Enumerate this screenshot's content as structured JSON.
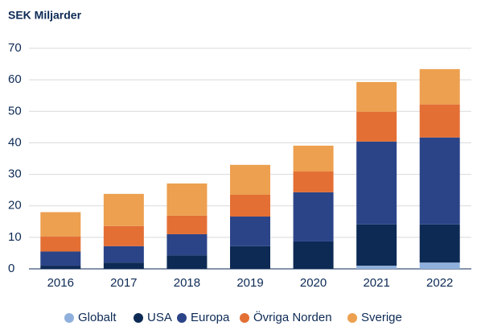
{
  "chart_data": {
    "type": "stacked_bar",
    "title": "SEK Miljarder",
    "categories": [
      "2016",
      "2017",
      "2018",
      "2019",
      "2020",
      "2021",
      "2022"
    ],
    "series": [
      {
        "name": "Globalt",
        "color": "#8fb0dc",
        "values": [
          0,
          0,
          0,
          0,
          0,
          1,
          2
        ]
      },
      {
        "name": "USA",
        "color": "#0d2a55",
        "values": [
          1,
          2,
          4.3,
          7.2,
          8.7,
          13.1,
          12.1
        ]
      },
      {
        "name": "Europa",
        "color": "#2b4488",
        "values": [
          4.5,
          5.2,
          6.7,
          9.4,
          15.6,
          26.3,
          27.6
        ]
      },
      {
        "name": "Övriga Norden",
        "color": "#e36f35",
        "values": [
          4.8,
          6.4,
          5.9,
          6.9,
          6.6,
          9.5,
          10.5
        ]
      },
      {
        "name": "Sverige",
        "color": "#eda04f",
        "values": [
          7.7,
          10.2,
          10.2,
          9.5,
          8.2,
          9.4,
          11.2
        ]
      }
    ],
    "ylim": [
      0,
      70
    ],
    "yticks": [
      0,
      10,
      20,
      30,
      40,
      50,
      60,
      70
    ],
    "grid": true,
    "legend": "bottom"
  }
}
